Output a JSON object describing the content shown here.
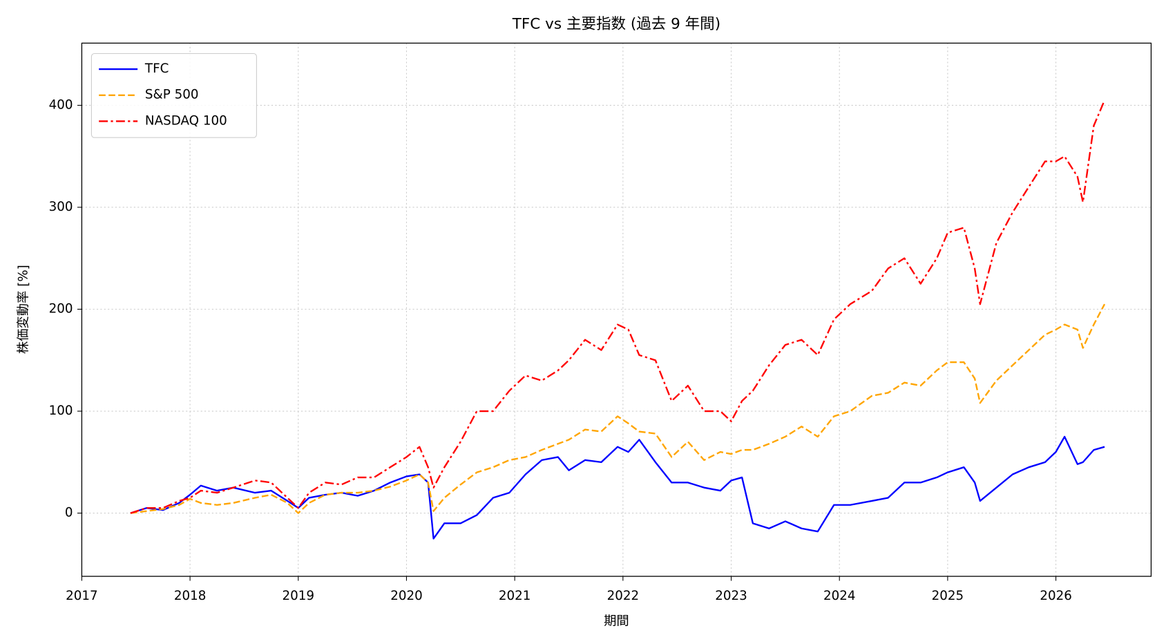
{
  "chart_data": {
    "type": "line",
    "title": "TFC vs 主要指数 (過去 9 年間)",
    "x_label": "期間",
    "y_label": "株価変動率 [%]",
    "x": [
      2017.45,
      2017.6,
      2017.75,
      2017.9,
      2018.0,
      2018.1,
      2018.25,
      2018.4,
      2018.6,
      2018.75,
      2018.9,
      2019.0,
      2019.1,
      2019.25,
      2019.4,
      2019.55,
      2019.7,
      2019.85,
      2020.0,
      2020.12,
      2020.2,
      2020.25,
      2020.35,
      2020.5,
      2020.65,
      2020.8,
      2020.95,
      2021.1,
      2021.25,
      2021.4,
      2021.5,
      2021.65,
      2021.8,
      2021.95,
      2022.05,
      2022.15,
      2022.3,
      2022.45,
      2022.6,
      2022.75,
      2022.9,
      2023.0,
      2023.1,
      2023.2,
      2023.35,
      2023.5,
      2023.65,
      2023.8,
      2023.95,
      2024.1,
      2024.3,
      2024.45,
      2024.6,
      2024.75,
      2024.9,
      2025.0,
      2025.15,
      2025.25,
      2025.3,
      2025.45,
      2025.6,
      2025.75,
      2025.9,
      2026.0,
      2026.08,
      2026.2,
      2026.25,
      2026.35,
      2026.45
    ],
    "series": [
      {
        "name": "TFC",
        "color": "#0000ff",
        "linestyle": "solid",
        "values": [
          0,
          5,
          3,
          10,
          18,
          27,
          22,
          25,
          20,
          22,
          12,
          5,
          15,
          18,
          20,
          17,
          22,
          30,
          36,
          38,
          30,
          -25,
          -10,
          -10,
          -2,
          15,
          20,
          38,
          52,
          55,
          42,
          52,
          50,
          65,
          60,
          72,
          50,
          30,
          30,
          25,
          22,
          32,
          35,
          -10,
          -15,
          -8,
          -15,
          -18,
          8,
          8,
          12,
          15,
          30,
          30,
          35,
          40,
          45,
          30,
          12,
          25,
          38,
          45,
          50,
          60,
          75,
          48,
          50,
          62,
          65
        ]
      },
      {
        "name": "S&P 500",
        "color": "#ffa500",
        "linestyle": "dashed",
        "values": [
          0,
          2,
          4,
          8,
          14,
          10,
          8,
          10,
          15,
          18,
          10,
          0,
          10,
          18,
          20,
          20,
          22,
          26,
          32,
          38,
          30,
          2,
          15,
          28,
          40,
          45,
          52,
          55,
          62,
          68,
          72,
          82,
          80,
          95,
          88,
          80,
          78,
          55,
          70,
          52,
          60,
          58,
          62,
          62,
          68,
          75,
          85,
          75,
          95,
          100,
          115,
          118,
          128,
          125,
          140,
          148,
          148,
          132,
          108,
          130,
          145,
          160,
          175,
          180,
          185,
          180,
          162,
          185,
          205
        ]
      },
      {
        "name": "NASDAQ 100",
        "color": "#ff0000",
        "linestyle": "dashdot",
        "values": [
          0,
          5,
          5,
          12,
          15,
          22,
          20,
          25,
          32,
          30,
          15,
          5,
          20,
          30,
          28,
          35,
          35,
          45,
          55,
          65,
          45,
          25,
          45,
          70,
          100,
          100,
          120,
          135,
          130,
          140,
          150,
          170,
          160,
          185,
          180,
          155,
          150,
          110,
          125,
          100,
          100,
          90,
          110,
          120,
          145,
          165,
          170,
          155,
          190,
          205,
          218,
          240,
          250,
          225,
          250,
          275,
          280,
          240,
          205,
          265,
          295,
          320,
          345,
          345,
          350,
          330,
          305,
          380,
          405
        ]
      }
    ],
    "xlim": [
      2017,
      2026.88
    ],
    "xticks": [
      2017,
      2018,
      2019,
      2020,
      2021,
      2022,
      2023,
      2024,
      2025,
      2026
    ],
    "ylim": [
      -62,
      461
    ],
    "yticks": [
      0,
      100,
      200,
      300,
      400
    ],
    "grid": true,
    "legend": "upper-left"
  }
}
